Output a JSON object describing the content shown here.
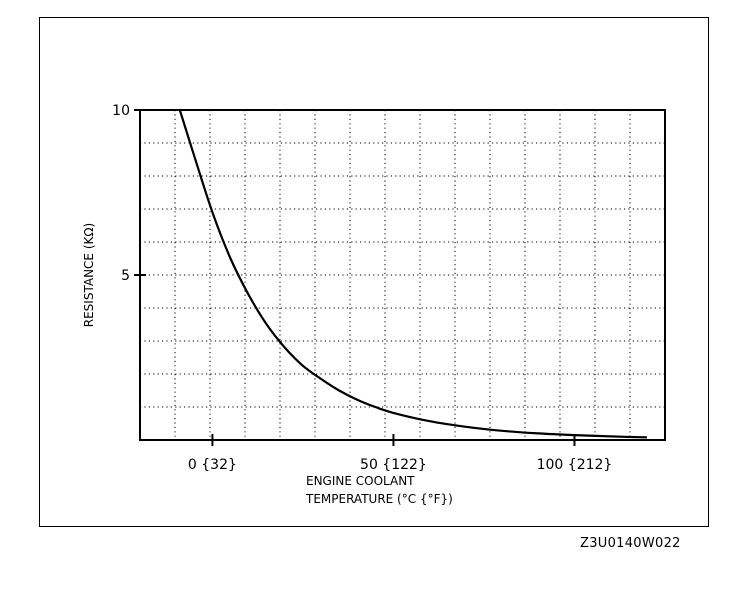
{
  "chart_data": {
    "type": "line",
    "title": "",
    "xlabel_line1": "ENGINE COOLANT",
    "xlabel_line2": "TEMPERATURE (°C {°F})",
    "ylabel": "RESISTANCE (KΩ)",
    "xlim": [
      -20,
      125
    ],
    "ylim": [
      0,
      10
    ],
    "x_ticks": [
      {
        "value": 0,
        "label": "0 {32}"
      },
      {
        "value": 50,
        "label": "50 {122}"
      },
      {
        "value": 100,
        "label": "100 {212}"
      }
    ],
    "y_ticks": [
      {
        "value": 5,
        "label": "5"
      },
      {
        "value": 10,
        "label": "10"
      }
    ],
    "grid": true,
    "series": [
      {
        "x": [
          -9,
          -5,
          0,
          5,
          10,
          15,
          20,
          25,
          30,
          35,
          40,
          45,
          50,
          60,
          70,
          80,
          90,
          100,
          110,
          120
        ],
        "y": [
          10,
          8.6,
          6.9,
          5.5,
          4.4,
          3.5,
          2.8,
          2.25,
          1.85,
          1.5,
          1.22,
          1.0,
          0.82,
          0.57,
          0.4,
          0.28,
          0.2,
          0.15,
          0.11,
          0.08
        ]
      }
    ]
  },
  "figure_code": "Z3U0140W022"
}
